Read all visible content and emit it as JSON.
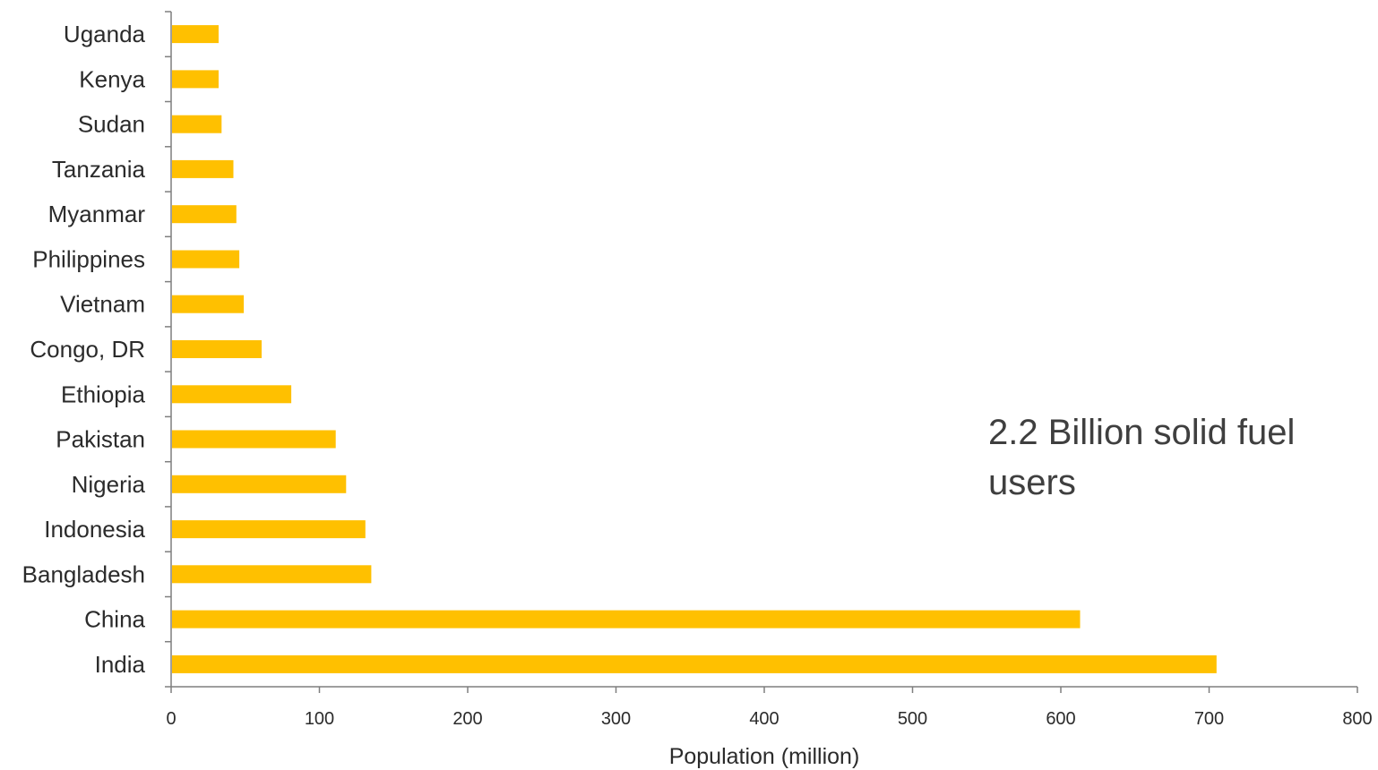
{
  "chart_data": {
    "type": "bar",
    "orientation": "horizontal",
    "categories": [
      "India",
      "China",
      "Bangladesh",
      "Indonesia",
      "Nigeria",
      "Pakistan",
      "Ethiopia",
      "Congo, DR",
      "Vietnam",
      "Philippines",
      "Myanmar",
      "Tanzania",
      "Sudan",
      "Kenya",
      "Uganda"
    ],
    "values": [
      705,
      613,
      135,
      131,
      118,
      111,
      81,
      61,
      49,
      46,
      44,
      42,
      34,
      32,
      32
    ],
    "xlabel": "Population (million)",
    "ylabel": "",
    "xlim": [
      0,
      800
    ],
    "xticks": [
      0,
      100,
      200,
      300,
      400,
      500,
      600,
      700,
      800
    ],
    "xtick_labels": [
      "0",
      "100",
      "200",
      "300",
      "400",
      "500",
      "600",
      "700",
      "800"
    ],
    "grid": false,
    "legend": "none",
    "bar_color": "#FFC000",
    "axis_color": "#7f7f7f",
    "annotation": "2.2 Billion solid fuel users"
  }
}
